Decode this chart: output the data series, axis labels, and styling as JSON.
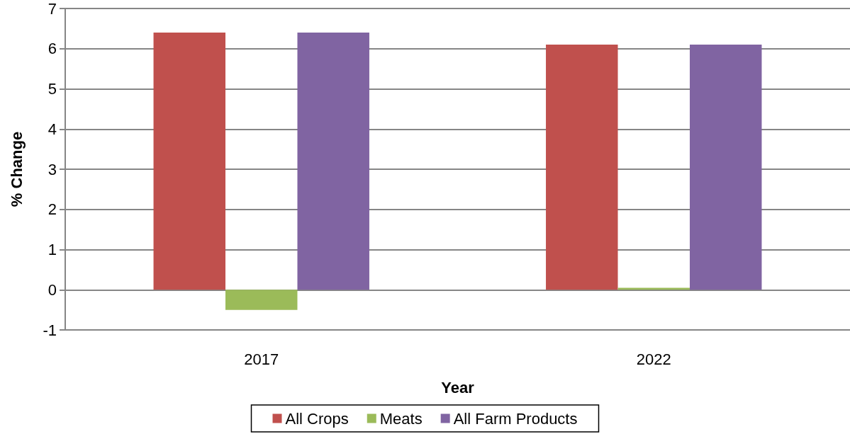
{
  "chart_data": {
    "type": "bar",
    "xlabel": "Year",
    "ylabel": "% Change",
    "categories": [
      "2017",
      "2022"
    ],
    "series": [
      {
        "name": "All Crops",
        "color": "#c0504d",
        "values": [
          6.4,
          6.1
        ]
      },
      {
        "name": "Meats",
        "color": "#9bbb59",
        "values": [
          -0.5,
          0.05
        ]
      },
      {
        "name": "All Farm Products",
        "color": "#8064a2",
        "values": [
          6.4,
          6.1
        ]
      }
    ],
    "ylim": [
      -1,
      7
    ],
    "yticks": [
      -1,
      0,
      1,
      2,
      3,
      4,
      5,
      6,
      7
    ],
    "grid": "y",
    "legend": "bottom"
  }
}
